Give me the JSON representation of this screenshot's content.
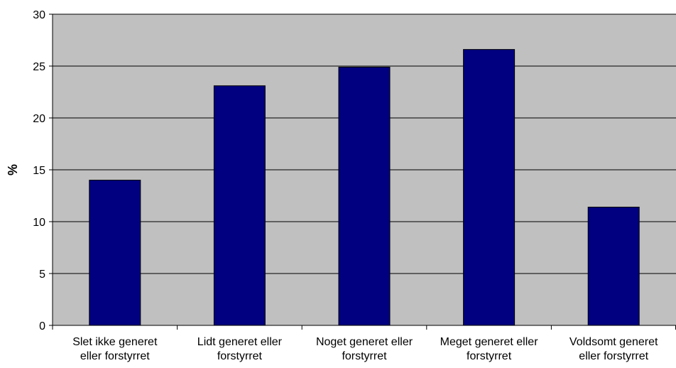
{
  "chart_data": {
    "type": "bar",
    "title": "",
    "xlabel": "",
    "ylabel": "%",
    "ylim": [
      0,
      30
    ],
    "yticks": [
      0,
      5,
      10,
      15,
      20,
      25,
      30
    ],
    "grid": true,
    "categories": [
      [
        "Slet ikke generet",
        "eller forstyrret"
      ],
      [
        "Lidt generet eller",
        "forstyrret"
      ],
      [
        "Noget generet eller",
        "forstyrret"
      ],
      [
        "Meget generet eller",
        "forstyrret"
      ],
      [
        "Voldsomt generet",
        "eller forstyrret"
      ]
    ],
    "values": [
      14.0,
      23.1,
      24.9,
      26.6,
      11.4
    ],
    "colors": {
      "plot_background": "#c0c0c0",
      "bar_fill": "#000080",
      "gridline": "#000000"
    }
  }
}
